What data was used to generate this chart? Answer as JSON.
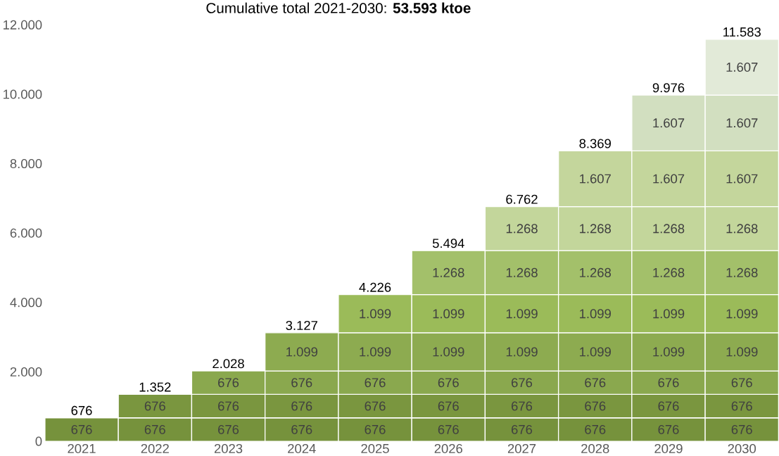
{
  "chart_data": {
    "type": "bar",
    "title": "Cumulative total 2021-2030: **53.593 ktoe**",
    "categories": [
      "2021",
      "2022",
      "2023",
      "2024",
      "2025",
      "2026",
      "2027",
      "2028",
      "2029",
      "2030"
    ],
    "stacked": true,
    "ylim": [
      0,
      12000
    ],
    "yticks": [
      {
        "value": 0,
        "label": "0"
      },
      {
        "value": 2000,
        "label": "2.000"
      },
      {
        "value": 4000,
        "label": "4.000"
      },
      {
        "value": 6000,
        "label": "6.000"
      },
      {
        "value": 8000,
        "label": "8.000"
      },
      {
        "value": 10000,
        "label": "10.000"
      },
      {
        "value": 12000,
        "label": "12.000"
      }
    ],
    "series": [
      {
        "color": "#76923c",
        "values": [
          676,
          676,
          676,
          676,
          676,
          676,
          676,
          676,
          676,
          676
        ],
        "value_labels": [
          "676",
          "676",
          "676",
          "676",
          "676",
          "676",
          "676",
          "676",
          "676",
          "676"
        ]
      },
      {
        "color": "#7a963f",
        "values": [
          null,
          676,
          676,
          676,
          676,
          676,
          676,
          676,
          676,
          676
        ],
        "value_labels": [
          null,
          "676",
          "676",
          "676",
          "676",
          "676",
          "676",
          "676",
          "676",
          "676"
        ]
      },
      {
        "color": "#8aa84e",
        "values": [
          null,
          null,
          676,
          676,
          676,
          676,
          676,
          676,
          676,
          676
        ],
        "value_labels": [
          null,
          null,
          "676",
          "676",
          "676",
          "676",
          "676",
          "676",
          "676",
          "676"
        ]
      },
      {
        "color": "#8dab50",
        "values": [
          null,
          null,
          null,
          1099,
          1099,
          1099,
          1099,
          1099,
          1099,
          1099
        ],
        "value_labels": [
          null,
          null,
          null,
          "1.099",
          "1.099",
          "1.099",
          "1.099",
          "1.099",
          "1.099",
          "1.099"
        ]
      },
      {
        "color": "#9bbb59",
        "values": [
          null,
          null,
          null,
          null,
          1099,
          1099,
          1099,
          1099,
          1099,
          1099
        ],
        "value_labels": [
          null,
          null,
          null,
          null,
          "1.099",
          "1.099",
          "1.099",
          "1.099",
          "1.099",
          "1.099"
        ]
      },
      {
        "color": "#a3c06a",
        "values": [
          null,
          null,
          null,
          null,
          null,
          1268,
          1268,
          1268,
          1268,
          1268
        ],
        "value_labels": [
          null,
          null,
          null,
          null,
          null,
          "1.268",
          "1.268",
          "1.268",
          "1.268",
          "1.268"
        ]
      },
      {
        "color": "#c3d69b",
        "values": [
          null,
          null,
          null,
          null,
          null,
          null,
          1268,
          1268,
          1268,
          1268
        ],
        "value_labels": [
          null,
          null,
          null,
          null,
          null,
          null,
          "1.268",
          "1.268",
          "1.268",
          "1.268"
        ]
      },
      {
        "color": "#c4d69c",
        "values": [
          null,
          null,
          null,
          null,
          null,
          null,
          null,
          1607,
          1607,
          1607
        ],
        "value_labels": [
          null,
          null,
          null,
          null,
          null,
          null,
          null,
          "1.607",
          "1.607",
          "1.607"
        ]
      },
      {
        "color": "#d2dfc0",
        "values": [
          null,
          null,
          null,
          null,
          null,
          null,
          null,
          null,
          1607,
          1607
        ],
        "value_labels": [
          null,
          null,
          null,
          null,
          null,
          null,
          null,
          null,
          "1.607",
          "1.607"
        ]
      },
      {
        "color": "#e2ead8",
        "values": [
          null,
          null,
          null,
          null,
          null,
          null,
          null,
          null,
          null,
          1607
        ],
        "value_labels": [
          null,
          null,
          null,
          null,
          null,
          null,
          null,
          null,
          null,
          "1.607"
        ]
      }
    ],
    "totals": [
      "676",
      "1.352",
      "2.028",
      "3.127",
      "4.226",
      "5.494",
      "6.762",
      "8.369",
      "9.976",
      "11.583"
    ]
  }
}
